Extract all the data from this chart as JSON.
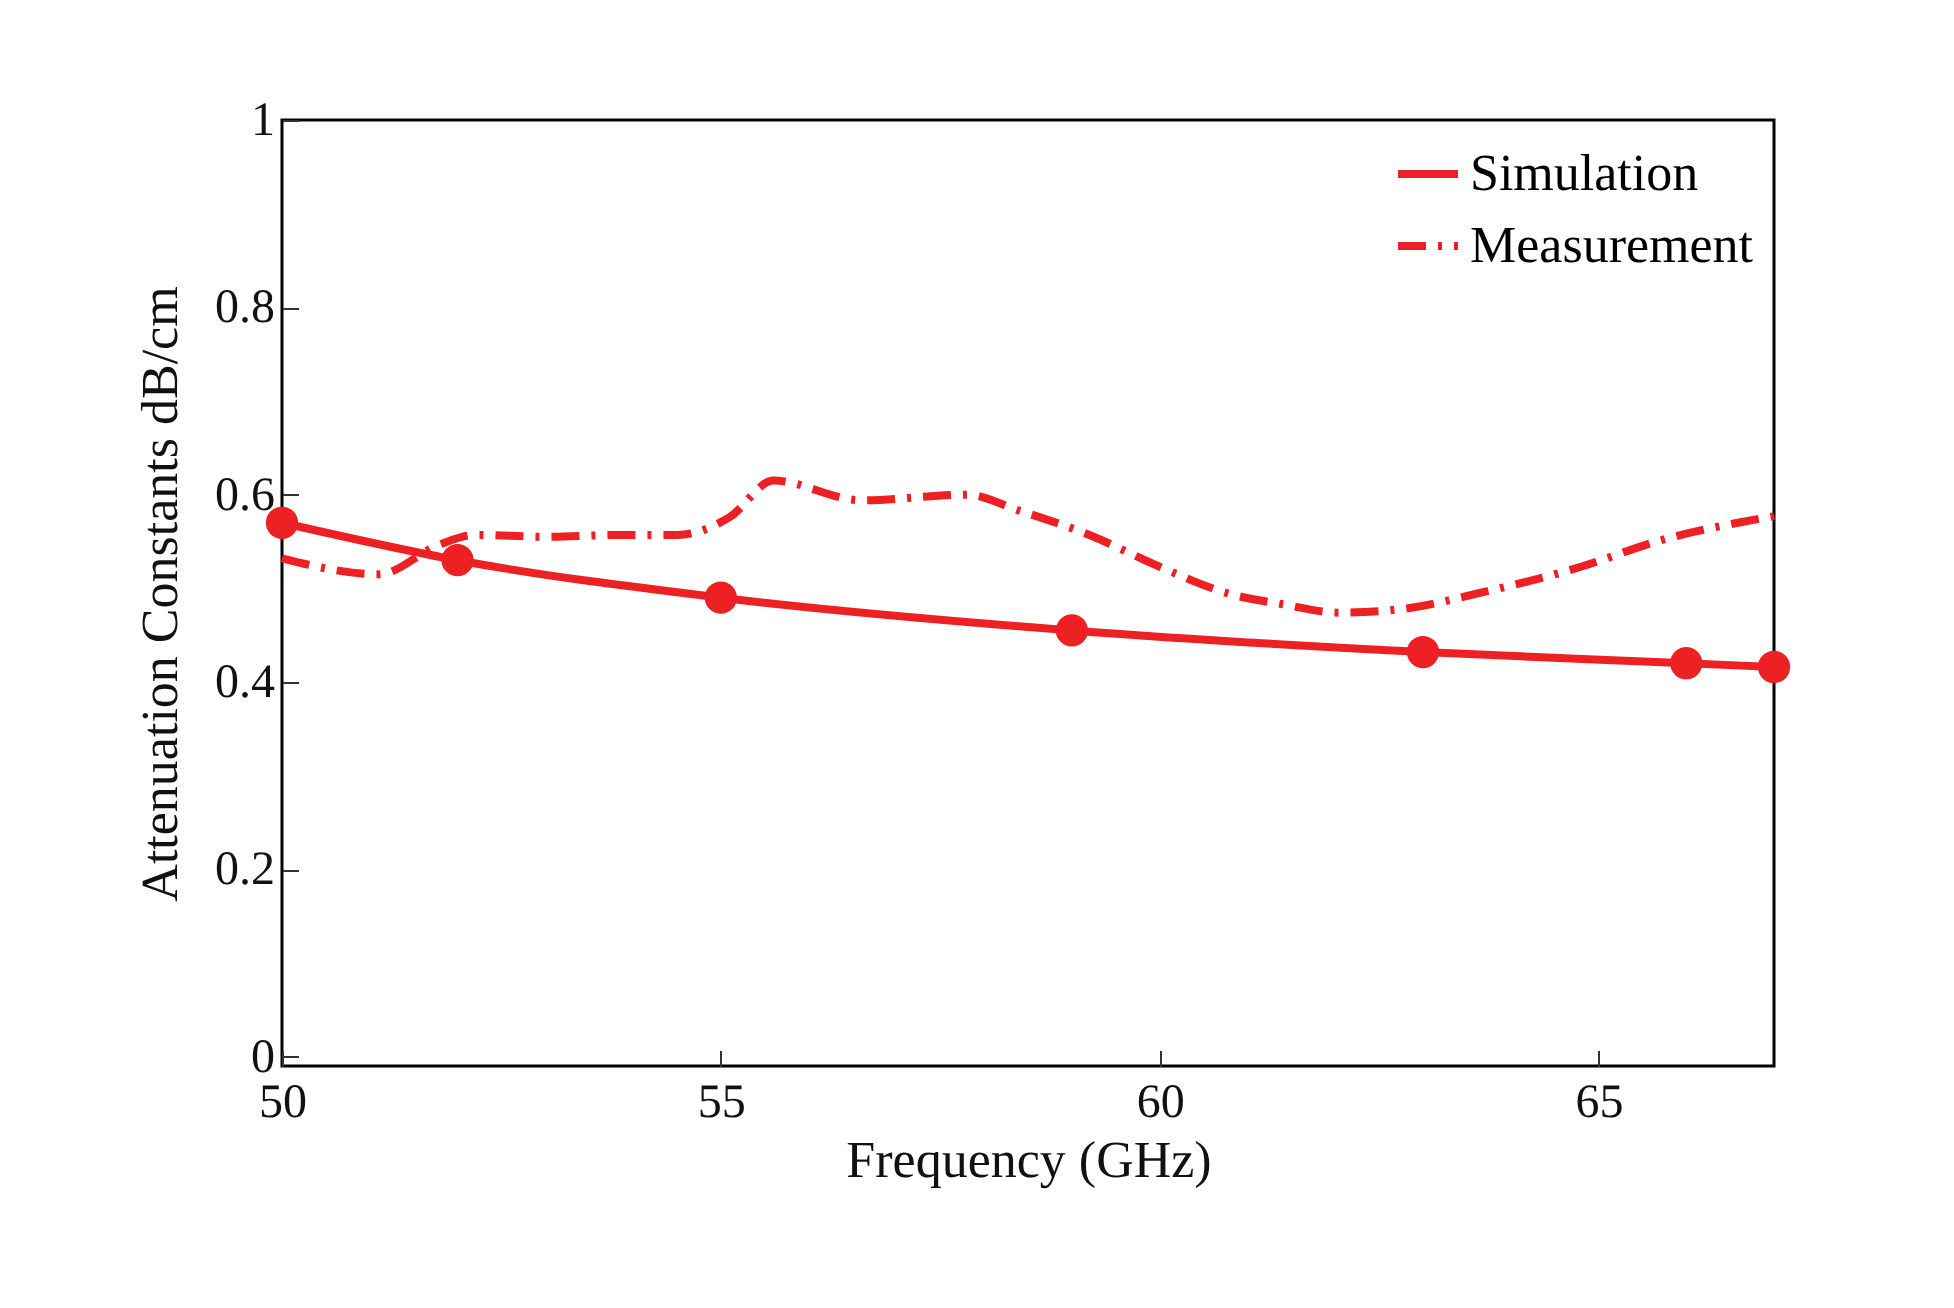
{
  "chart_data": {
    "type": "line",
    "xlabel": "Frequency (GHz)",
    "ylabel": "Attenuation Constants dB/cm",
    "xlim": [
      50,
      67
    ],
    "ylim": [
      -0.01,
      1
    ],
    "xticks": [
      50,
      55,
      60,
      65
    ],
    "yticks": [
      0,
      0.2,
      0.4,
      0.6,
      0.8,
      1
    ],
    "grid": false,
    "legend": "top right",
    "series": [
      {
        "name": "Simulation",
        "color": "#ed2024",
        "marker": "circle",
        "line_style": "solid",
        "x": [
          50,
          52,
          55,
          59,
          63,
          66,
          67
        ],
        "values": [
          0.57,
          0.53,
          0.49,
          0.455,
          0.432,
          0.42,
          0.416
        ]
      },
      {
        "name": "Measurement",
        "color": "#ed2024",
        "marker": "none",
        "line_style": "dashed",
        "x": [
          50,
          51.1,
          51.8,
          52.2,
          53,
          53.85,
          54.5,
          55.1,
          55.6,
          56.6,
          57.8,
          58.4,
          59.2,
          60,
          60.8,
          61.4,
          62.05,
          62.85,
          63.6,
          64.8,
          65.7,
          67
        ],
        "values": [
          0.532,
          0.515,
          0.547,
          0.557,
          0.555,
          0.557,
          0.557,
          0.576,
          0.615,
          0.594,
          0.6,
          0.583,
          0.557,
          0.523,
          0.494,
          0.483,
          0.474,
          0.479,
          0.494,
          0.523,
          0.551,
          0.577
        ]
      }
    ]
  }
}
